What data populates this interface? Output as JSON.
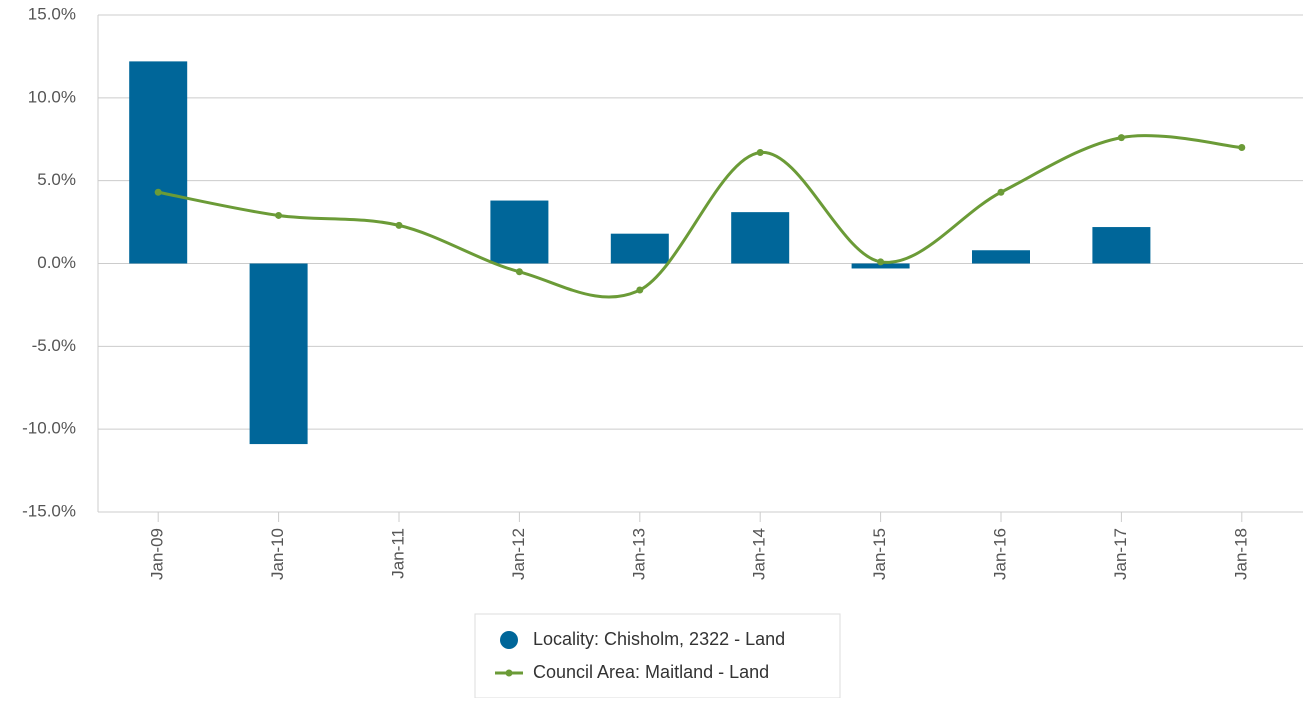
{
  "chart_data": {
    "type": "bar-line",
    "categories": [
      "Jan-09",
      "Jan-10",
      "Jan-11",
      "Jan-12",
      "Jan-13",
      "Jan-14",
      "Jan-15",
      "Jan-16",
      "Jan-17",
      "Jan-18"
    ],
    "series": [
      {
        "name": "Locality: Chisholm, 2322 - Land",
        "type": "bar",
        "color": "#006699",
        "values": [
          12.2,
          -10.9,
          null,
          3.8,
          1.8,
          3.1,
          -0.3,
          0.8,
          2.2,
          null
        ]
      },
      {
        "name": "Council Area: Maitland - Land",
        "type": "line",
        "color": "#6b9b37",
        "values": [
          4.3,
          2.9,
          2.3,
          -0.5,
          -1.6,
          6.7,
          0.1,
          4.3,
          7.6,
          7.0
        ]
      }
    ],
    "ylim": [
      -15,
      15
    ],
    "yticks": [
      {
        "value": -15,
        "label": "-15.0%"
      },
      {
        "value": -10,
        "label": "-10.0%"
      },
      {
        "value": -5,
        "label": "-5.0%"
      },
      {
        "value": 0,
        "label": "0.0%"
      },
      {
        "value": 5,
        "label": "5.0%"
      },
      {
        "value": 10,
        "label": "10.0%"
      },
      {
        "value": 15,
        "label": "15.0%"
      }
    ],
    "grid": true
  }
}
